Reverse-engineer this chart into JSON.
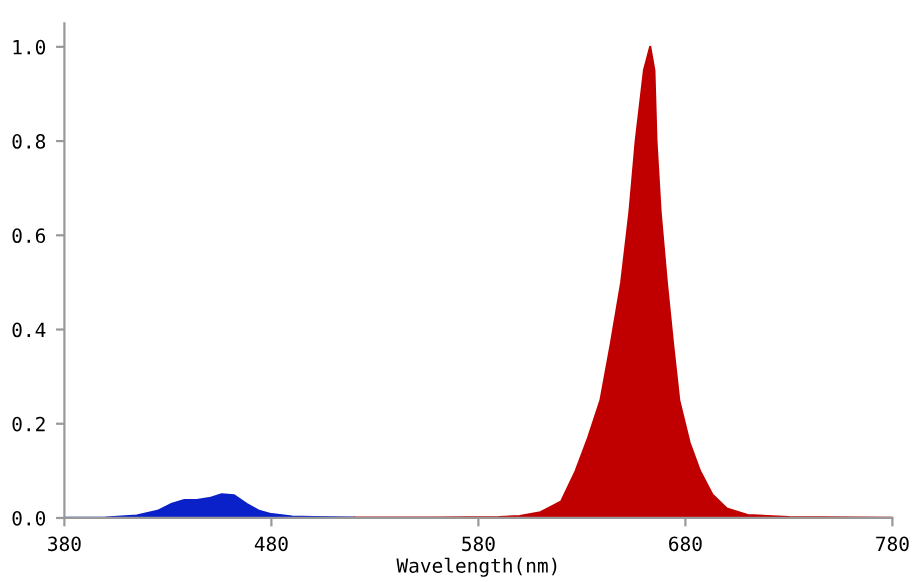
{
  "chart_data": {
    "type": "area",
    "xlabel": "Wavelength(nm)",
    "xlim": [
      380,
      780
    ],
    "ylim": [
      0,
      1.05
    ],
    "xticks": [
      380,
      480,
      580,
      680,
      780
    ],
    "yticks": [
      {
        "value": 0,
        "label": "0.0"
      },
      {
        "value": 0.2,
        "label": "0.2"
      },
      {
        "value": 0.4,
        "label": "0.4"
      },
      {
        "value": 0.6,
        "label": "0.6"
      },
      {
        "value": 0.8,
        "label": "0.8"
      },
      {
        "value": 1,
        "label": "1.0"
      }
    ],
    "grid": false,
    "legend": false,
    "series": [
      {
        "color": "#0a20c8",
        "x": [
          380,
          400,
          415,
          425,
          432,
          438,
          444,
          450,
          456,
          462,
          468,
          474,
          480,
          490,
          500,
          520
        ],
        "values": [
          0,
          0.001,
          0.005,
          0.015,
          0.03,
          0.038,
          0.038,
          0.042,
          0.05,
          0.048,
          0.03,
          0.015,
          0.008,
          0.003,
          0.002,
          0.001
        ]
      },
      {
        "color": "#c00000",
        "x": [
          520,
          560,
          590,
          600,
          610,
          620,
          627,
          633,
          639,
          644,
          649,
          653,
          656,
          660,
          663,
          665,
          666,
          668,
          671,
          674,
          677,
          682,
          687,
          693,
          700,
          710,
          730,
          780
        ],
        "values": [
          0.001,
          0.001,
          0.002,
          0.004,
          0.012,
          0.035,
          0.1,
          0.17,
          0.25,
          0.37,
          0.5,
          0.65,
          0.8,
          0.95,
          1.0,
          0.95,
          0.8,
          0.65,
          0.5,
          0.37,
          0.25,
          0.16,
          0.1,
          0.05,
          0.02,
          0.006,
          0.002,
          0
        ]
      }
    ]
  }
}
